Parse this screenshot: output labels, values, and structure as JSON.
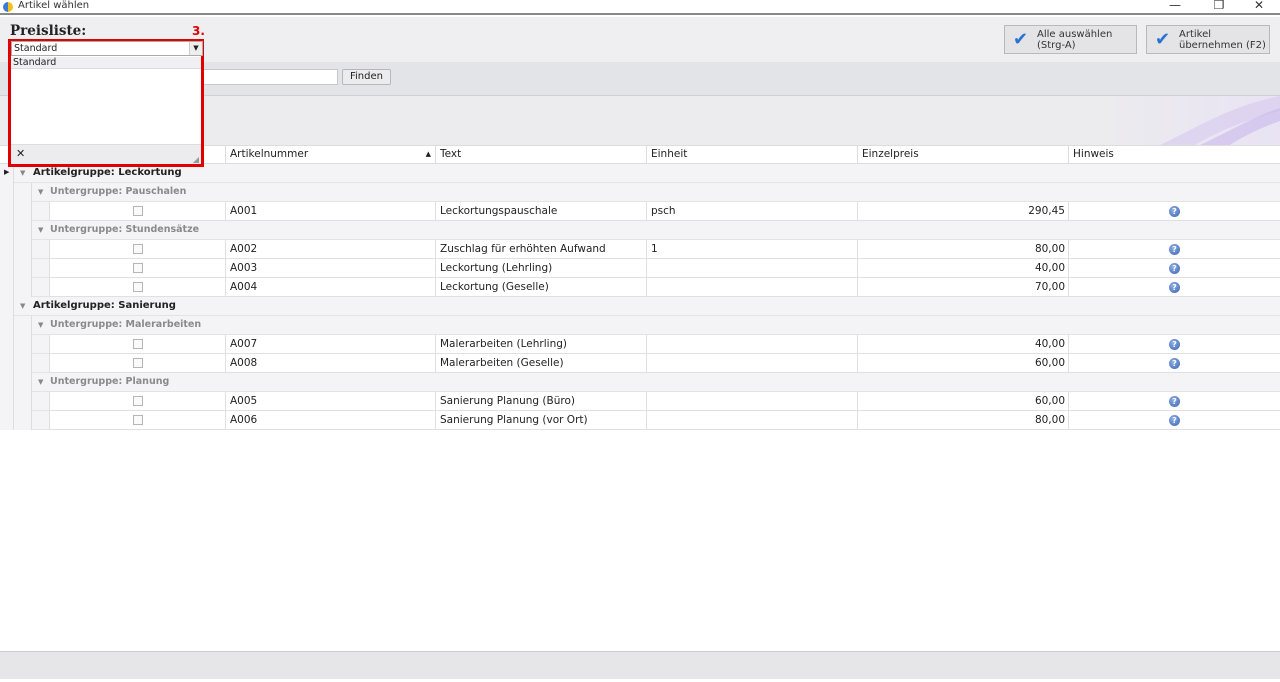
{
  "window": {
    "title": "Artikel wählen",
    "minimize": "—",
    "restore": "❐",
    "close": "✕"
  },
  "toolbar": {
    "pricelist_label": "Preisliste:",
    "pricelist_value": "Standard",
    "pricelist_options": [
      "Standard"
    ],
    "select_all": [
      "Alle auswählen",
      "(Strg-A)"
    ],
    "take_over": [
      "Artikel",
      "übernehmen (F2)"
    ],
    "annotation": "3."
  },
  "search": {
    "value": "",
    "find_button": "Finden"
  },
  "columns": [
    "Artikelnummer",
    "Text",
    "Einheit",
    "Einzelpreis",
    "Hinweis"
  ],
  "groups": [
    {
      "label": "Artikelgruppe: Leckortung",
      "subgroups": [
        {
          "label": "Untergruppe: Pauschalen",
          "rows": [
            {
              "nr": "A001",
              "text": "Leckortungspauschale",
              "unit": "psch",
              "price": "290,45"
            }
          ]
        },
        {
          "label": "Untergruppe: Stundensätze",
          "rows": [
            {
              "nr": "A002",
              "text": "Zuschlag für erhöhten Aufwand",
              "unit": "1",
              "price": "80,00"
            },
            {
              "nr": "A003",
              "text": "Leckortung (Lehrling)",
              "unit": "",
              "price": "40,00"
            },
            {
              "nr": "A004",
              "text": "Leckortung (Geselle)",
              "unit": "",
              "price": "70,00"
            }
          ]
        }
      ]
    },
    {
      "label": "Artikelgruppe: Sanierung",
      "subgroups": [
        {
          "label": "Untergruppe: Malerarbeiten",
          "rows": [
            {
              "nr": "A007",
              "text": "Malerarbeiten (Lehrling)",
              "unit": "",
              "price": "40,00"
            },
            {
              "nr": "A008",
              "text": "Malerarbeiten (Geselle)",
              "unit": "",
              "price": "60,00"
            }
          ]
        },
        {
          "label": "Untergruppe: Planung",
          "rows": [
            {
              "nr": "A005",
              "text": "Sanierung Planung (Büro)",
              "unit": "",
              "price": "60,00"
            },
            {
              "nr": "A006",
              "text": "Sanierung Planung (vor Ort)",
              "unit": "",
              "price": "80,00"
            }
          ]
        }
      ]
    }
  ],
  "colors": {
    "accent": "#2a72d4",
    "highlight": "#e00000"
  }
}
